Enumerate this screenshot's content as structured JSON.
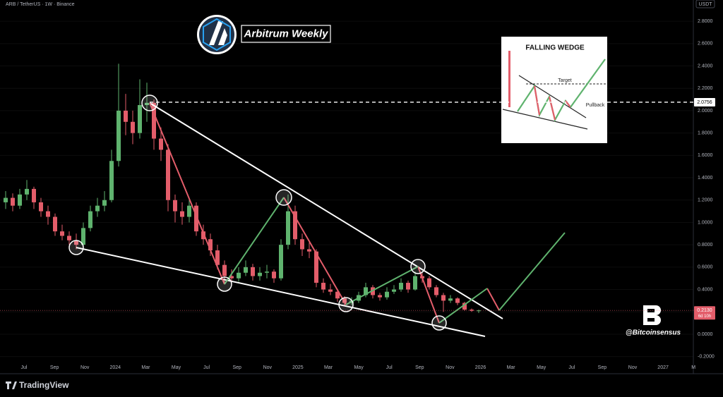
{
  "chart_data": {
    "type": "candlestick",
    "title": "ARB / TetherUS · 1W · Binance",
    "unit": "USDT",
    "up_color": "#5fb36e",
    "down_color": "#e35d6a",
    "ylim": [
      -0.24,
      2.99
    ],
    "yticks": [
      {
        "value": 2.8,
        "label": "2.8000"
      },
      {
        "value": 2.6,
        "label": "2.6000"
      },
      {
        "value": 2.4,
        "label": "2.4000"
      },
      {
        "value": 2.2,
        "label": "2.2000"
      },
      {
        "value": 2.0,
        "label": "2.0000"
      },
      {
        "value": 1.8,
        "label": "1.8000"
      },
      {
        "value": 1.6,
        "label": "1.6000"
      },
      {
        "value": 1.4,
        "label": "1.4000"
      },
      {
        "value": 1.2,
        "label": "1.2000"
      },
      {
        "value": 1.0,
        "label": "1.0000"
      },
      {
        "value": 0.8,
        "label": "0.8000"
      },
      {
        "value": 0.6,
        "label": "0.6000"
      },
      {
        "value": 0.4,
        "label": "0.4000"
      },
      {
        "value": 0.2,
        "label": "0.2000"
      },
      {
        "value": 0,
        "label": "0.0000"
      },
      {
        "value": -0.2,
        "label": "-0.2000"
      }
    ],
    "x_labels": [
      "Jul",
      "Sep",
      "Nov",
      "2024",
      "Mar",
      "May",
      "Jul",
      "Sep",
      "Nov",
      "2025",
      "Mar",
      "May",
      "Jul",
      "Sep",
      "Nov",
      "2026",
      "Mar",
      "May",
      "Jul",
      "Sep",
      "Nov",
      "2027",
      "M"
    ],
    "open": [
      1.18,
      1.22,
      1.15,
      1.25,
      1.3,
      1.18,
      1.1,
      1.05,
      0.92,
      0.88,
      0.84,
      0.8,
      0.95,
      1.1,
      1.15,
      1.2,
      1.55,
      2.0,
      1.9,
      1.8,
      2.05,
      2.07,
      1.75,
      1.65,
      1.2,
      1.1,
      1.05,
      1.15,
      0.92,
      0.85,
      0.75,
      0.62,
      0.52,
      0.5,
      0.55,
      0.6,
      0.52,
      0.55,
      0.56,
      0.5,
      0.8,
      1.1,
      0.85,
      0.76,
      0.74,
      0.46,
      0.4,
      0.38,
      0.32,
      0.28,
      0.3,
      0.35,
      0.42,
      0.35,
      0.33,
      0.38,
      0.4,
      0.46,
      0.4,
      0.52,
      0.5,
      0.42,
      0.35,
      0.3,
      0.32,
      0.28,
      0.22,
      0.21
    ],
    "high": [
      1.28,
      1.26,
      1.3,
      1.38,
      1.32,
      1.22,
      1.15,
      1.08,
      0.98,
      0.92,
      0.9,
      1.0,
      1.15,
      1.22,
      1.28,
      1.65,
      2.42,
      2.15,
      2.0,
      2.28,
      2.25,
      2.1,
      1.85,
      1.7,
      1.25,
      1.18,
      1.22,
      1.18,
      0.98,
      0.9,
      0.8,
      0.66,
      0.58,
      0.6,
      0.66,
      0.63,
      0.6,
      0.62,
      0.58,
      0.85,
      1.25,
      1.15,
      0.9,
      0.82,
      0.76,
      0.5,
      0.45,
      0.4,
      0.34,
      0.33,
      0.38,
      0.46,
      0.44,
      0.37,
      0.42,
      0.44,
      0.5,
      0.48,
      0.56,
      0.55,
      0.52,
      0.44,
      0.37,
      0.35,
      0.33,
      0.29,
      0.23,
      0.22
    ],
    "low": [
      1.12,
      1.1,
      1.12,
      1.2,
      1.12,
      1.05,
      0.98,
      0.88,
      0.84,
      0.8,
      0.76,
      0.78,
      0.92,
      1.05,
      1.1,
      1.18,
      1.5,
      1.78,
      1.7,
      1.75,
      1.9,
      1.65,
      1.55,
      1.1,
      1.0,
      0.98,
      1.0,
      0.88,
      0.8,
      0.7,
      0.58,
      0.45,
      0.44,
      0.47,
      0.52,
      0.48,
      0.48,
      0.5,
      0.46,
      0.48,
      0.76,
      0.8,
      0.7,
      0.68,
      0.42,
      0.37,
      0.35,
      0.29,
      0.25,
      0.26,
      0.28,
      0.33,
      0.32,
      0.3,
      0.31,
      0.36,
      0.38,
      0.37,
      0.39,
      0.46,
      0.4,
      0.33,
      0.2,
      0.28,
      0.26,
      0.21,
      0.2,
      0.19
    ],
    "close": [
      1.22,
      1.15,
      1.25,
      1.3,
      1.18,
      1.1,
      1.05,
      0.92,
      0.88,
      0.84,
      0.8,
      0.95,
      1.1,
      1.15,
      1.2,
      1.55,
      2.0,
      1.9,
      1.8,
      2.05,
      2.07,
      1.75,
      1.65,
      1.2,
      1.1,
      1.05,
      1.15,
      0.92,
      0.85,
      0.75,
      0.62,
      0.52,
      0.5,
      0.55,
      0.6,
      0.52,
      0.55,
      0.56,
      0.5,
      0.8,
      1.1,
      0.85,
      0.76,
      0.74,
      0.46,
      0.4,
      0.38,
      0.32,
      0.28,
      0.3,
      0.35,
      0.42,
      0.35,
      0.33,
      0.38,
      0.4,
      0.46,
      0.4,
      0.52,
      0.5,
      0.42,
      0.35,
      0.3,
      0.32,
      0.28,
      0.22,
      0.21,
      0.213
    ],
    "target_level": 2.0756,
    "current_price": {
      "value": 0.213,
      "label": "0.2130"
    },
    "countdown": "6d 10h",
    "annotations": {
      "badge": "Arbitrum Weekly",
      "handle": "@Bitcoinsensus",
      "inset_title": "FALLING WEDGE",
      "inset_target": "Target",
      "inset_pullback": "Pullback"
    },
    "footer": "TradingView"
  }
}
